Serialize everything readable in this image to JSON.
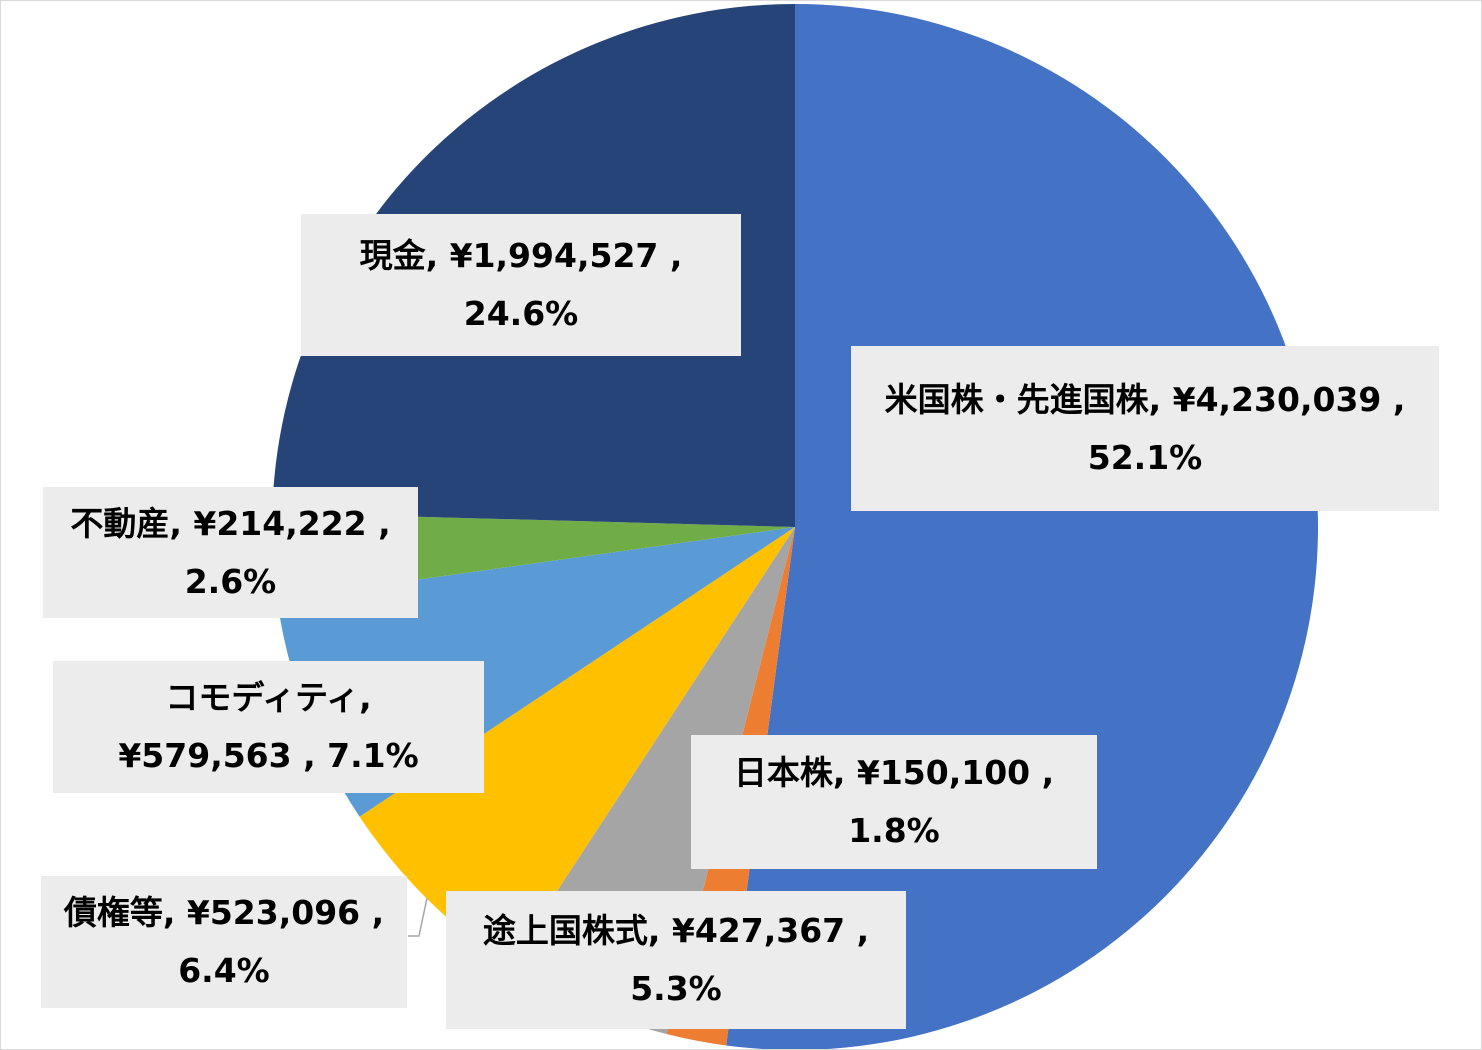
{
  "chart_data": {
    "type": "pie",
    "title": "",
    "start_angle_deg": 0,
    "direction": "clockwise",
    "slices": [
      {
        "name": "米国株・先進国株",
        "value": 4230039,
        "value_label": "¥4,230,039",
        "percent": 52.1,
        "percent_label": "52.1%",
        "color": "#4472c4",
        "label_text": "米国株・先進国株, ¥4,230,039 , 52.1%",
        "label_lines": [
          "米国株・先進国株, ¥4,230,039 ,",
          "52.1%"
        ]
      },
      {
        "name": "日本株",
        "value": 150100,
        "value_label": "¥150,100",
        "percent": 1.8,
        "percent_label": "1.8%",
        "color": "#ed7d31",
        "label_text": "日本株, ¥150,100 , 1.8%",
        "label_lines": [
          "日本株, ¥150,100 ,",
          "1.8%"
        ]
      },
      {
        "name": "途上国株式",
        "value": 427367,
        "value_label": "¥427,367",
        "percent": 5.3,
        "percent_label": "5.3%",
        "color": "#a5a5a5",
        "label_text": "途上国株式, ¥427,367 , 5.3%",
        "label_lines": [
          "途上国株式, ¥427,367 ,",
          "5.3%"
        ]
      },
      {
        "name": "債権等",
        "value": 523096,
        "value_label": "¥523,096",
        "percent": 6.4,
        "percent_label": "6.4%",
        "color": "#ffc000",
        "label_text": "債権等, ¥523,096 , 6.4%",
        "label_lines": [
          "債権等, ¥523,096 ,",
          "6.4%"
        ]
      },
      {
        "name": "コモディティ",
        "value": 579563,
        "value_label": "¥579,563",
        "percent": 7.1,
        "percent_label": "7.1%",
        "color": "#5b9bd5",
        "label_text": "コモディティ, ¥579,563 , 7.1%",
        "label_lines": [
          "コモディティ,",
          "¥579,563 , 7.1%"
        ]
      },
      {
        "name": "不動産",
        "value": 214222,
        "value_label": "¥214,222",
        "percent": 2.6,
        "percent_label": "2.6%",
        "color": "#70ad47",
        "label_text": "不動産, ¥214,222 , 2.6%",
        "label_lines": [
          "不動産, ¥214,222 ,",
          "2.6%"
        ]
      },
      {
        "name": "現金",
        "value": 1994527,
        "value_label": "¥1,994,527",
        "percent": 24.6,
        "percent_label": "24.6%",
        "color": "#264478",
        "label_text": "現金, ¥1,994,527 , 24.6%",
        "label_lines": [
          "現金, ¥1,994,527 , 24.6%"
        ]
      }
    ]
  }
}
